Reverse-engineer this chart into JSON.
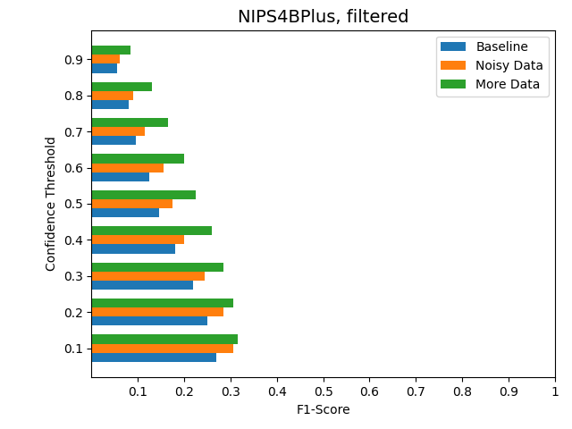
{
  "title": "NIPS4BPlus, filtered",
  "xlabel": "F1-Score",
  "ylabel": "Confidence Threshold",
  "thresholds": [
    0.1,
    0.2,
    0.3,
    0.4,
    0.5,
    0.6,
    0.7,
    0.8,
    0.9
  ],
  "baseline": [
    0.27,
    0.25,
    0.22,
    0.18,
    0.145,
    0.125,
    0.095,
    0.08,
    0.055
  ],
  "noisy_data": [
    0.305,
    0.285,
    0.245,
    0.2,
    0.175,
    0.155,
    0.115,
    0.09,
    0.06
  ],
  "more_data": [
    0.315,
    0.305,
    0.285,
    0.26,
    0.225,
    0.2,
    0.165,
    0.13,
    0.085
  ],
  "colors": {
    "baseline": "#1f77b4",
    "noisy_data": "#ff7f0e",
    "more_data": "#2ca02c"
  },
  "legend_labels": [
    "Baseline",
    "Noisy Data",
    "More Data"
  ],
  "xlim": [
    0,
    1
  ],
  "xticks": [
    0.1,
    0.2,
    0.3,
    0.4,
    0.5,
    0.6,
    0.7,
    0.8,
    0.9,
    1.0
  ],
  "xticklabels": [
    "0.1",
    "0.2",
    "0.3",
    "0.4",
    "0.5",
    "0.6",
    "0.7",
    "0.8",
    "0.9",
    "1"
  ],
  "bar_height": 0.25,
  "title_fontsize": 14
}
